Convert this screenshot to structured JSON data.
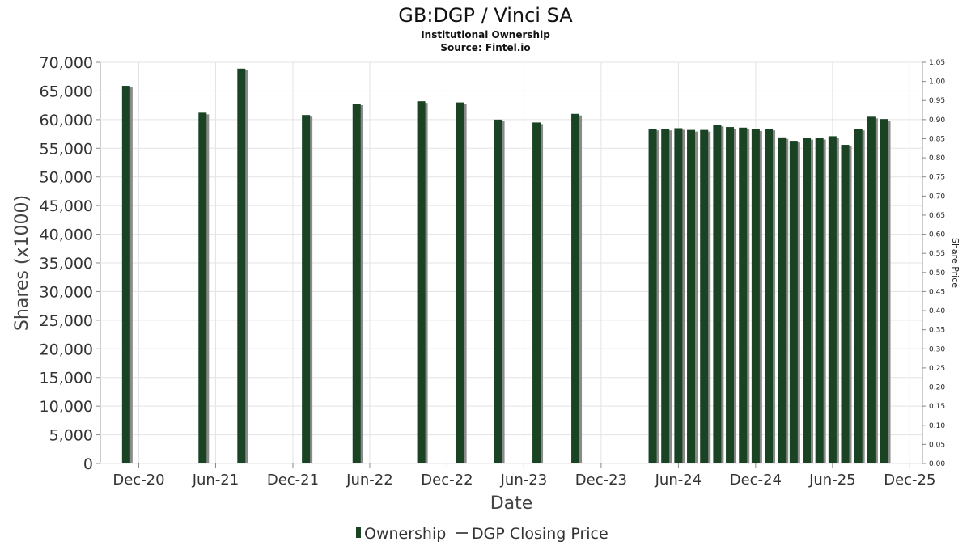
{
  "chart_data": {
    "type": "bar",
    "title": "GB:DGP / Vinci SA",
    "subtitle": "Institutional Ownership",
    "source": "Source: Fintel.io",
    "xlabel": "Date",
    "ylabel": "Shares (x1000)",
    "y2label": "Share Price",
    "ylim": [
      0,
      70000
    ],
    "y2lim": [
      0,
      1.05
    ],
    "xlim": [
      "2020-09-01",
      "2025-12-31"
    ],
    "grid": true,
    "legend_position": "bottom",
    "y_ticks": [
      "0",
      "5,000",
      "10,000",
      "15,000",
      "20,000",
      "25,000",
      "30,000",
      "35,000",
      "40,000",
      "45,000",
      "50,000",
      "55,000",
      "60,000",
      "65,000",
      "70,000"
    ],
    "y2_ticks": [
      "0.00",
      "0.05",
      "0.10",
      "0.15",
      "0.20",
      "0.25",
      "0.30",
      "0.35",
      "0.40",
      "0.45",
      "0.50",
      "0.55",
      "0.60",
      "0.65",
      "0.70",
      "0.75",
      "0.80",
      "0.85",
      "0.90",
      "0.95",
      "1.00",
      "1.05"
    ],
    "x_ticks": [
      {
        "label": "Dec-20",
        "date": "2020-12-01"
      },
      {
        "label": "Jun-21",
        "date": "2021-06-01"
      },
      {
        "label": "Dec-21",
        "date": "2021-12-01"
      },
      {
        "label": "Jun-22",
        "date": "2022-06-01"
      },
      {
        "label": "Dec-22",
        "date": "2022-12-01"
      },
      {
        "label": "Jun-23",
        "date": "2023-06-01"
      },
      {
        "label": "Dec-23",
        "date": "2023-12-01"
      },
      {
        "label": "Jun-24",
        "date": "2024-06-01"
      },
      {
        "label": "Dec-24",
        "date": "2024-12-01"
      },
      {
        "label": "Jun-25",
        "date": "2025-06-01"
      },
      {
        "label": "Dec-25",
        "date": "2025-12-01"
      }
    ],
    "series": [
      {
        "name": "Ownership",
        "color": "#1a4324",
        "x": [
          "2020-11-01",
          "2021-05-01",
          "2021-08-01",
          "2022-01-01",
          "2022-05-01",
          "2022-10-01",
          "2023-01-01",
          "2023-04-01",
          "2023-07-01",
          "2023-10-01",
          "2024-04-01",
          "2024-05-01",
          "2024-06-01",
          "2024-07-01",
          "2024-08-01",
          "2024-09-01",
          "2024-10-01",
          "2024-11-01",
          "2024-12-01",
          "2025-01-01",
          "2025-02-01",
          "2025-03-01",
          "2025-04-01",
          "2025-05-01",
          "2025-06-01",
          "2025-07-01",
          "2025-08-01",
          "2025-09-01",
          "2025-10-01"
        ],
        "values": [
          65900,
          61200,
          68900,
          60800,
          62800,
          63200,
          63000,
          60000,
          59500,
          61000,
          58400,
          58400,
          58500,
          58200,
          58200,
          59100,
          58700,
          58600,
          58300,
          58400,
          56900,
          56300,
          56800,
          56800,
          57100,
          55600,
          58400,
          60500,
          60100
        ]
      },
      {
        "name": "DGP Closing Price",
        "color": "#555555",
        "x": [],
        "values": []
      }
    ]
  }
}
